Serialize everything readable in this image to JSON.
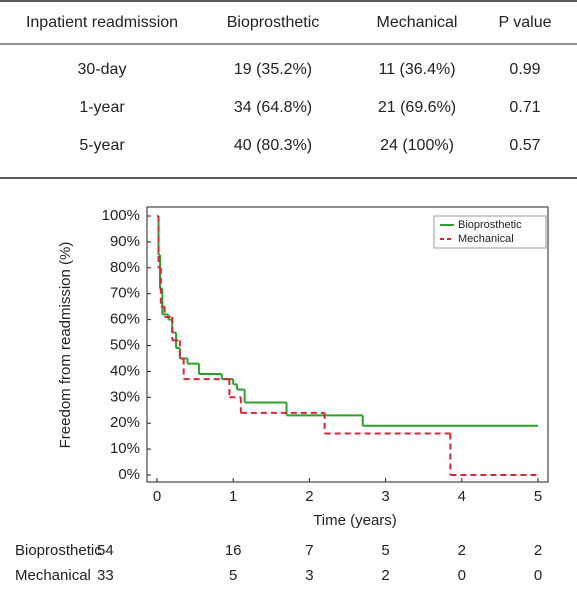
{
  "table": {
    "header": [
      "Inpatient readmission",
      "Bioprosthetic",
      "Mechanical",
      "P value"
    ],
    "rows": [
      [
        "30-day",
        "19 (35.2%)",
        "11 (36.4%)",
        "0.99"
      ],
      [
        "1-year",
        "34 (64.8%)",
        "21 (69.6%)",
        "0.71"
      ],
      [
        "5-year",
        "40 (80.3%)",
        "24 (100%)",
        "0.57"
      ]
    ]
  },
  "chart_data": {
    "type": "step",
    "x_label": "Time (years)",
    "y_label": "Freedom from readmission (%)",
    "xlim": [
      0,
      5
    ],
    "xticks": [
      0,
      1,
      2,
      3,
      4,
      5
    ],
    "ylim": [
      0,
      100
    ],
    "yticks": [
      {
        "value": 0,
        "label": "0%"
      },
      {
        "value": 10,
        "label": "10%"
      },
      {
        "value": 20,
        "label": "20%"
      },
      {
        "value": 30,
        "label": "30%"
      },
      {
        "value": 40,
        "label": "40%"
      },
      {
        "value": 50,
        "label": "50%"
      },
      {
        "value": 60,
        "label": "60%"
      },
      {
        "value": 70,
        "label": "70%"
      },
      {
        "value": 80,
        "label": "80%"
      },
      {
        "value": 90,
        "label": "90%"
      },
      {
        "value": 100,
        "label": "100%"
      }
    ],
    "legend": "upper right",
    "series": [
      {
        "name": "Bioprosthetic",
        "color": "#2ca02c",
        "dash": false,
        "x": [
          0,
          0.02,
          0.04,
          0.07,
          0.15,
          0.2,
          0.25,
          0.3,
          0.4,
          0.55,
          0.85,
          1.0,
          1.05,
          1.15,
          1.7,
          2.7,
          5.0
        ],
        "values": [
          100,
          85,
          72,
          62,
          60,
          55,
          49,
          45,
          43,
          39,
          37,
          35,
          33,
          28,
          23,
          19,
          19
        ]
      },
      {
        "name": "Mechanical",
        "color": "#d62739",
        "dash": true,
        "x": [
          0,
          0.02,
          0.05,
          0.1,
          0.2,
          0.3,
          0.35,
          0.95,
          1.1,
          2.2,
          3.85,
          5.0
        ],
        "values": [
          100,
          80,
          65,
          61,
          52,
          45,
          37,
          30,
          24,
          16,
          0,
          0
        ]
      }
    ]
  },
  "risk_table": {
    "rows": [
      {
        "name": "Bioprosthetic",
        "values": [
          54,
          16,
          7,
          5,
          2,
          2
        ]
      },
      {
        "name": "Mechanical",
        "values": [
          33,
          5,
          3,
          2,
          0,
          0
        ]
      }
    ]
  }
}
